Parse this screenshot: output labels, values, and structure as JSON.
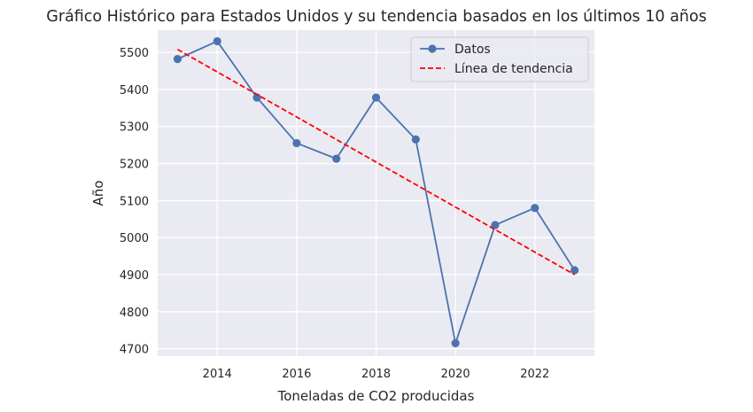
{
  "chart_data": {
    "type": "line",
    "title": "Gráfico Histórico para Estados Unidos y su tendencia basados en los últimos 10 años",
    "xlabel": "Toneladas de CO2 producidas",
    "ylabel": "Año",
    "xlim": [
      2012.5,
      2023.5
    ],
    "ylim": [
      4680,
      5560
    ],
    "xticks": [
      2014,
      2016,
      2018,
      2020,
      2022
    ],
    "yticks": [
      4700,
      4800,
      4900,
      5000,
      5100,
      5200,
      5300,
      5400,
      5500
    ],
    "grid": true,
    "legend_position": "top-right",
    "series": [
      {
        "name": "Datos",
        "style": "line-marker",
        "color": "#4c72b0",
        "x": [
          2013,
          2014,
          2015,
          2016,
          2017,
          2018,
          2019,
          2020,
          2021,
          2022,
          2023
        ],
        "y": [
          5482,
          5530,
          5378,
          5255,
          5213,
          5378,
          5265,
          4715,
          5034,
          5080,
          4912
        ]
      },
      {
        "name": "Línea de tendencia",
        "style": "dashed",
        "color": "#ff0000",
        "x": [
          2013,
          2023
        ],
        "y": [
          5508,
          4900
        ]
      }
    ]
  },
  "colors": {
    "plot_background": "#eaeaf2",
    "grid": "#ffffff",
    "text": "#262626"
  }
}
